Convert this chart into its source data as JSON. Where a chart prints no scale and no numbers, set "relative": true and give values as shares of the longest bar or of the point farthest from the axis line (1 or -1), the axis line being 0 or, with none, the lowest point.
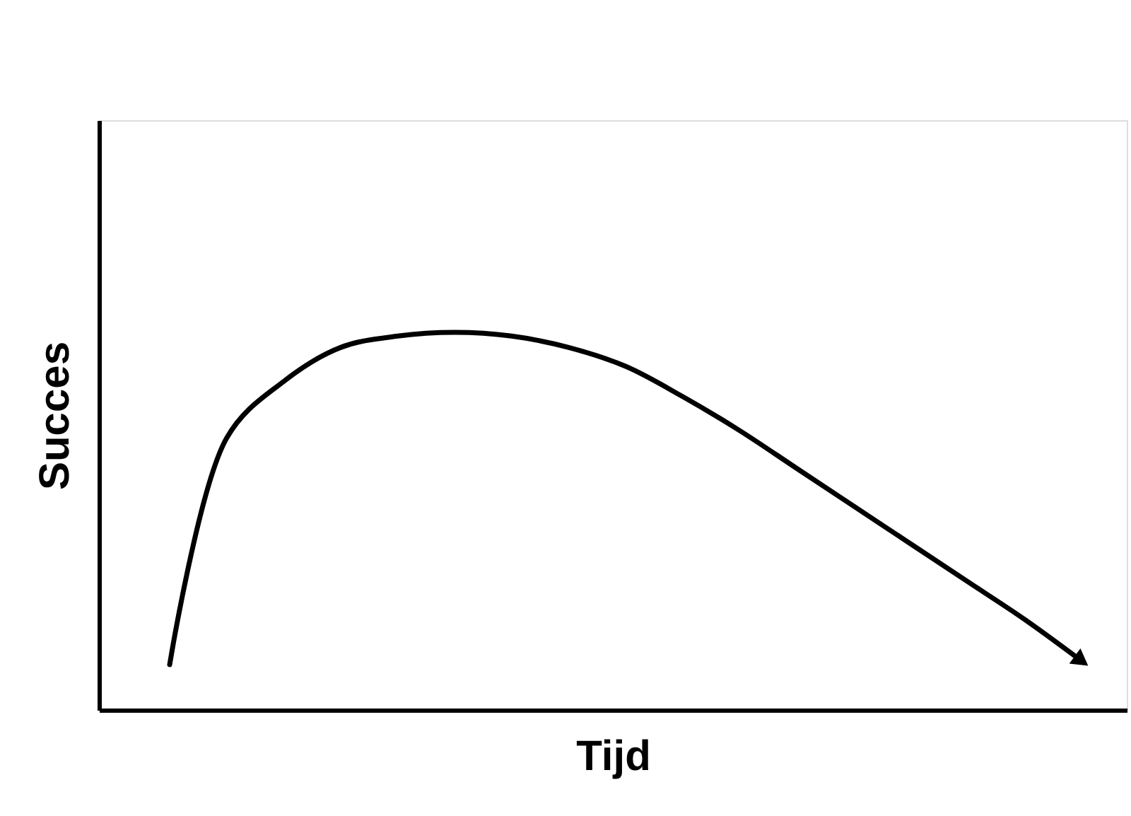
{
  "chart_data": {
    "type": "line",
    "relative": true,
    "xlabel": "Tijd",
    "ylabel": "Succes",
    "categories": [
      null,
      null,
      null,
      null,
      null,
      null,
      null,
      null,
      null,
      null,
      null,
      null,
      null,
      null,
      null,
      null,
      null
    ],
    "series": [
      {
        "color": "#000000",
        "values": [
          0.12,
          0.72,
          0.87,
          0.96,
          0.99,
          1.0,
          0.99,
          0.96,
          0.91,
          0.83,
          0.74,
          0.64,
          0.54,
          0.44,
          0.34,
          0.24,
          0.13
        ]
      }
    ],
    "grid": false,
    "tick_labels": false
  }
}
